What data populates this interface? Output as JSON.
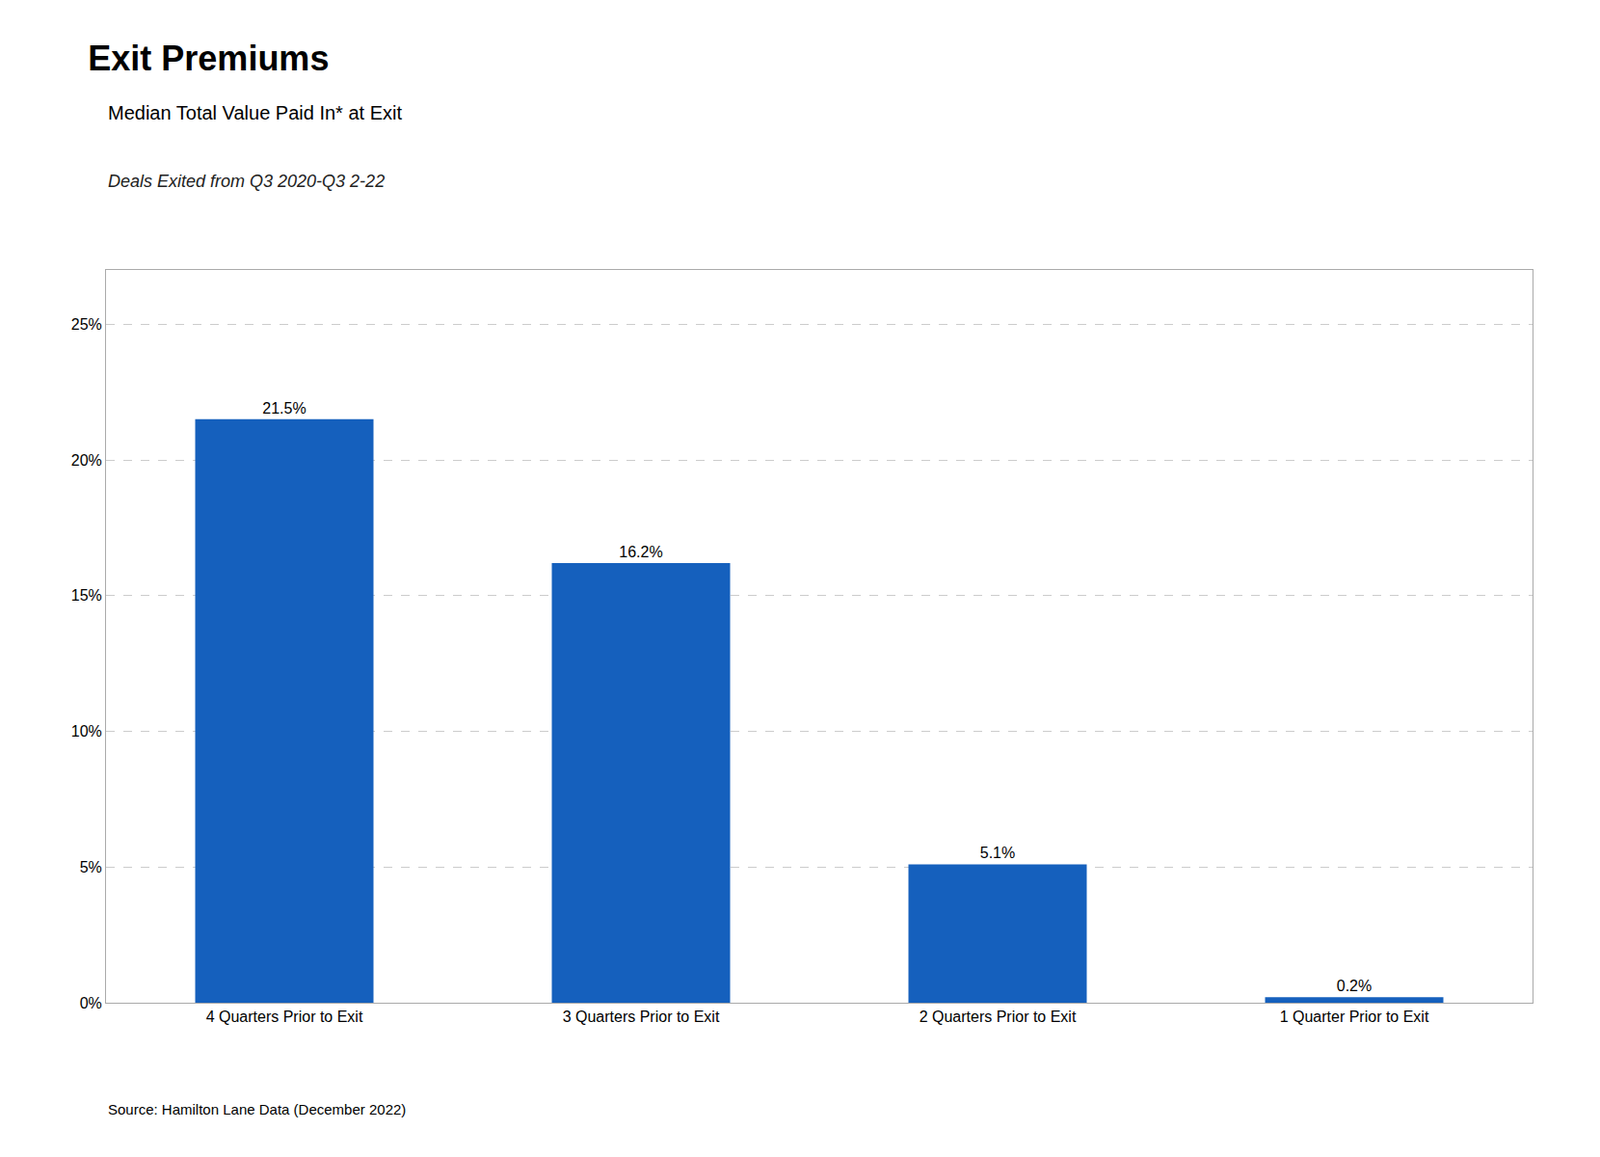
{
  "chart_data": {
    "type": "bar",
    "title": "Exit Premiums",
    "subtitle": "Median Total Value Paid In* at Exit",
    "annotations": [
      "Deals Exited from Q3 2020-Q3 2-22",
      "Source: Hamilton Lane Data (December 2022)"
    ],
    "categories": [
      "4 Quarters Prior to Exit",
      "3 Quarters Prior to Exit",
      "2 Quarters Prior to Exit",
      "1 Quarter Prior to Exit"
    ],
    "values": [
      21.5,
      16.2,
      5.1,
      0.2
    ],
    "value_labels": [
      "21.5%",
      "16.2%",
      "5.1%",
      "0.2%"
    ],
    "data_labels": true,
    "color": "#1560BD",
    "ylim": [
      0,
      27
    ],
    "yticks": [
      {
        "value": 0,
        "label": "0%"
      },
      {
        "value": 5,
        "label": "5%"
      },
      {
        "value": 10,
        "label": "10%"
      },
      {
        "value": 15,
        "label": "15%"
      },
      {
        "value": 20,
        "label": "20%"
      },
      {
        "value": 25,
        "label": "25%"
      }
    ],
    "grid": true
  }
}
